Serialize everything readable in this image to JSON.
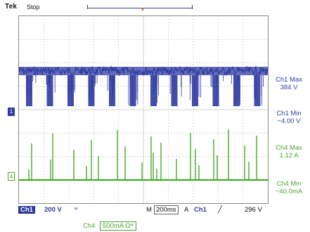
{
  "header": {
    "brand": "Tek",
    "status": "Stop",
    "trigger_marker": "▼"
  },
  "channels": {
    "ch1": {
      "marker": "1",
      "color": "#2d3ba0"
    },
    "ch4": {
      "marker": "4",
      "color": "#49a62d"
    }
  },
  "measurements": [
    {
      "label": "Ch1 Max",
      "value": "384 V",
      "color": "#2d3ba0"
    },
    {
      "label": "Ch1 Min",
      "value": "−4.00 V",
      "color": "#2d3ba0"
    },
    {
      "label": "Ch4 Max",
      "value": "1.12 A",
      "color": "#49a62d"
    },
    {
      "label": "Ch4 Min",
      "value": "−40.0mA",
      "color": "#49a62d"
    }
  ],
  "bottom": {
    "ch1_label": "Ch1",
    "ch1_scale": "200 V",
    "bw_icon": "ʷ",
    "m_label": "M",
    "timebase": "200ms",
    "trigger_mode": "A",
    "trigger_source": "Ch1",
    "trigger_slope": "╱",
    "trigger_level": "296 V"
  },
  "ch4_row": {
    "label": "Ch4",
    "scale": "500mA Ωʷ"
  },
  "chart_data": {
    "type": "line",
    "grid": true,
    "x_divisions": 10,
    "y_divisions": 8,
    "series": [
      {
        "name": "Ch1",
        "color": "#2d3ba0"
      },
      {
        "name": "Ch4",
        "color": "#49a62d"
      }
    ]
  }
}
